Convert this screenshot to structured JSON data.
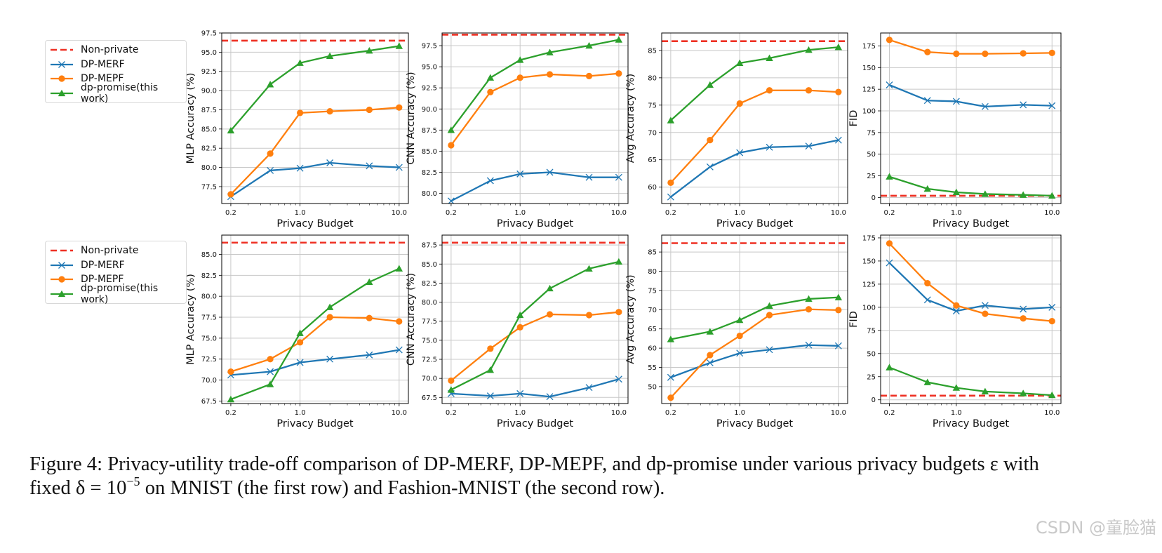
{
  "chart_data": {
    "legend": [
      {
        "key": "nonprivate",
        "label": "Non-private",
        "color": "#ee3124",
        "style": "dashed",
        "marker": "none"
      },
      {
        "key": "merf",
        "label": "DP-MERF",
        "color": "#1f77b4",
        "style": "solid",
        "marker": "x"
      },
      {
        "key": "mepf",
        "label": "DP-MEPF",
        "color": "#ff7f0e",
        "style": "solid",
        "marker": "circle"
      },
      {
        "key": "promise",
        "label": "dp-promise(this work)",
        "color": "#2ca02c",
        "style": "solid",
        "marker": "triangle"
      }
    ],
    "x": [
      0.2,
      0.5,
      1.0,
      2.0,
      5.0,
      10.0
    ],
    "x_scale": "log",
    "xlim": [
      0.162,
      12.4
    ],
    "xticks": [
      0.2,
      1.0,
      10.0
    ],
    "xtick_labels": [
      "0.2",
      "1.0",
      "10.0"
    ],
    "grid": true,
    "legend_placement": "left of each row",
    "charts": [
      {
        "type": "line",
        "row": "MNIST",
        "xlabel": "Privacy Budget",
        "ylabel": "MLP Accuracy (%)",
        "ylim": [
          75.3,
          97.5
        ],
        "yticks": [
          77.5,
          80.0,
          82.5,
          85.0,
          87.5,
          90.0,
          92.5,
          95.0,
          97.5
        ],
        "nonprivate": 96.5,
        "series": {
          "merf": [
            76.2,
            79.6,
            79.9,
            80.6,
            80.2,
            80.0
          ],
          "mepf": [
            76.5,
            81.8,
            87.1,
            87.3,
            87.5,
            87.8
          ],
          "promise": [
            84.8,
            90.8,
            93.6,
            94.5,
            95.2,
            95.8
          ]
        }
      },
      {
        "type": "line",
        "row": "MNIST",
        "xlabel": "Privacy Budget",
        "ylabel": "CNN Accuracy (%)",
        "ylim": [
          78.8,
          99.0
        ],
        "yticks": [
          80.0,
          82.5,
          85.0,
          87.5,
          90.0,
          92.5,
          95.0,
          97.5
        ],
        "nonprivate": 98.8,
        "series": {
          "merf": [
            79.1,
            81.5,
            82.3,
            82.5,
            81.9,
            81.9
          ],
          "mepf": [
            85.7,
            92.0,
            93.7,
            94.1,
            93.9,
            94.2
          ],
          "promise": [
            87.5,
            93.7,
            95.8,
            96.7,
            97.5,
            98.2
          ]
        }
      },
      {
        "type": "line",
        "row": "MNIST",
        "xlabel": "Privacy Budget",
        "ylabel": "Avg Accuracy (%)",
        "ylim": [
          57.0,
          88.2
        ],
        "yticks": [
          60,
          65,
          70,
          75,
          80,
          85
        ],
        "nonprivate": 86.7,
        "series": {
          "merf": [
            58.2,
            63.7,
            66.3,
            67.3,
            67.5,
            68.6
          ],
          "mepf": [
            60.8,
            68.6,
            75.3,
            77.7,
            77.7,
            77.4
          ],
          "promise": [
            72.2,
            78.7,
            82.7,
            83.6,
            85.1,
            85.6
          ]
        }
      },
      {
        "type": "line",
        "row": "MNIST",
        "xlabel": "Privacy Budget",
        "ylabel": "FID",
        "ylim": [
          -7,
          190
        ],
        "yticks": [
          0,
          25,
          50,
          75,
          100,
          125,
          150,
          175
        ],
        "nonprivate": 2,
        "series": {
          "merf": [
            130,
            112,
            111,
            105,
            107,
            106
          ],
          "mepf": [
            182,
            168,
            166,
            166,
            166.5,
            167
          ],
          "promise": [
            24,
            10,
            6,
            4,
            3,
            2
          ]
        }
      },
      {
        "type": "line",
        "row": "Fashion-MNIST",
        "xlabel": "Privacy Budget",
        "ylabel": "MLP Accuracy (%)",
        "ylim": [
          67.2,
          87.3
        ],
        "yticks": [
          67.5,
          70.0,
          72.5,
          75.0,
          77.5,
          80.0,
          82.5,
          85.0
        ],
        "nonprivate": 86.4,
        "series": {
          "merf": [
            70.6,
            71.0,
            72.1,
            72.5,
            73.0,
            73.6
          ],
          "mepf": [
            71.0,
            72.5,
            74.5,
            77.5,
            77.4,
            77.0
          ],
          "promise": [
            67.7,
            69.5,
            75.6,
            78.7,
            81.7,
            83.3
          ]
        }
      },
      {
        "type": "line",
        "row": "Fashion-MNIST",
        "xlabel": "Privacy Budget",
        "ylabel": "CNN Accuracy (%)",
        "ylim": [
          66.7,
          88.8
        ],
        "yticks": [
          67.5,
          70.0,
          72.5,
          75.0,
          77.5,
          80.0,
          82.5,
          85.0,
          87.5
        ],
        "nonprivate": 87.8,
        "series": {
          "merf": [
            68.0,
            67.7,
            68.0,
            67.6,
            68.8,
            69.9
          ],
          "mepf": [
            69.7,
            73.9,
            76.7,
            78.4,
            78.3,
            78.7
          ],
          "promise": [
            68.5,
            71.1,
            78.3,
            81.8,
            84.4,
            85.3
          ]
        }
      },
      {
        "type": "line",
        "row": "Fashion-MNIST",
        "xlabel": "Privacy Budget",
        "ylabel": "Avg Accuracy (%)",
        "ylim": [
          45.6,
          89.4
        ],
        "yticks": [
          50,
          55,
          60,
          65,
          70,
          75,
          80,
          85
        ],
        "nonprivate": 87.3,
        "series": {
          "merf": [
            52.4,
            56.2,
            58.7,
            59.6,
            60.8,
            60.6
          ],
          "mepf": [
            47.1,
            58.2,
            63.2,
            68.6,
            70.1,
            69.9
          ],
          "promise": [
            62.3,
            64.3,
            67.3,
            71.0,
            72.8,
            73.2
          ]
        }
      },
      {
        "type": "line",
        "row": "Fashion-MNIST",
        "xlabel": "Privacy Budget",
        "ylabel": "FID",
        "ylim": [
          -4,
          178
        ],
        "yticks": [
          0,
          25,
          50,
          75,
          100,
          125,
          150,
          175
        ],
        "nonprivate": 4.5,
        "series": {
          "merf": [
            148,
            108,
            96,
            102,
            98,
            100
          ],
          "mepf": [
            169,
            126,
            102,
            93,
            88,
            85
          ],
          "promise": [
            35,
            19,
            13,
            9,
            7,
            5
          ]
        }
      }
    ]
  },
  "caption": {
    "line1": "Figure 4:  Privacy-utility trade-off comparison of DP-MERF, DP-MEPF, and dp-promise under various privacy budgets ε with",
    "line2_a": "fixed δ = 10",
    "line2_sup": "−5",
    "line2_b": " on MNIST (the first row) and Fashion-MNIST (the second row)."
  },
  "watermark": "CSDN @童脸猫"
}
